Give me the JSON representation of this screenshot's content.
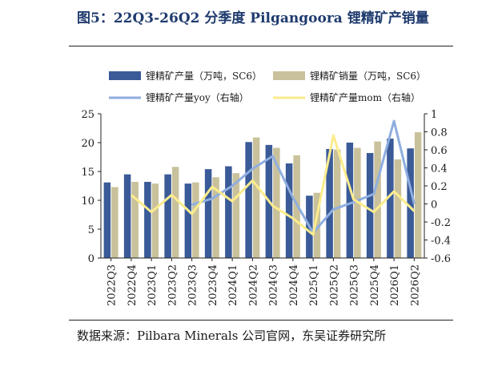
{
  "title": "图5：22Q3-26Q2 分季度 Pilgangoora 锂精矿产销量",
  "source": "数据来源：Pilbara Minerals 公司官网，东吴证券研究所",
  "colors": {
    "production": "#3a5a98",
    "sales": "#c9c19b",
    "yoy": "#8faee0",
    "mom": "#fbec8c",
    "title": "#1f3b6e"
  },
  "chart_data": {
    "type": "bar",
    "categories": [
      "2022Q3",
      "2022Q4",
      "2023Q1",
      "2023Q2",
      "2023Q3",
      "2023Q4",
      "2024Q1",
      "2024Q2",
      "2024Q3",
      "2024Q4",
      "2025Q1",
      "2025Q2",
      "2025Q3",
      "2025Q4",
      "2026Q1",
      "2026Q2"
    ],
    "series": [
      {
        "name": "锂精矿产量（万吨，SC6）",
        "axis": "left",
        "kind": "bar",
        "values": [
          13.1,
          14.5,
          13.2,
          14.5,
          12.9,
          15.4,
          15.9,
          20.1,
          19.6,
          16.4,
          10.8,
          18.9,
          20.0,
          18.2,
          20.7,
          19.0
        ]
      },
      {
        "name": "锂精矿销量（万吨，SC6）",
        "axis": "left",
        "kind": "bar",
        "values": [
          12.3,
          13.2,
          12.9,
          15.8,
          13.1,
          14.0,
          14.7,
          20.9,
          19.1,
          17.8,
          11.3,
          18.8,
          19.1,
          20.2,
          17.1,
          21.8
        ]
      },
      {
        "name": "锂精矿产量yoy（右轴）",
        "axis": "right",
        "kind": "line",
        "values": [
          null,
          null,
          null,
          null,
          -0.01,
          0.06,
          0.2,
          0.39,
          0.53,
          0.07,
          -0.32,
          -0.06,
          0.02,
          0.11,
          0.92,
          0.0
        ]
      },
      {
        "name": "锂精矿产量mom（右轴）",
        "axis": "right",
        "kind": "line",
        "values": [
          null,
          0.1,
          -0.09,
          0.1,
          -0.11,
          0.19,
          0.03,
          0.26,
          -0.02,
          -0.16,
          -0.34,
          0.76,
          0.05,
          -0.09,
          0.14,
          -0.08
        ]
      }
    ],
    "left_axis": {
      "min": 0,
      "max": 25,
      "ticks": [
        0,
        5,
        10,
        15,
        20,
        25
      ]
    },
    "right_axis": {
      "min": -0.6,
      "max": 1,
      "ticks": [
        -0.6,
        -0.4,
        -0.2,
        0,
        0.2,
        0.4,
        0.6,
        0.8,
        1
      ]
    },
    "legend_position": "top",
    "grid": false
  }
}
